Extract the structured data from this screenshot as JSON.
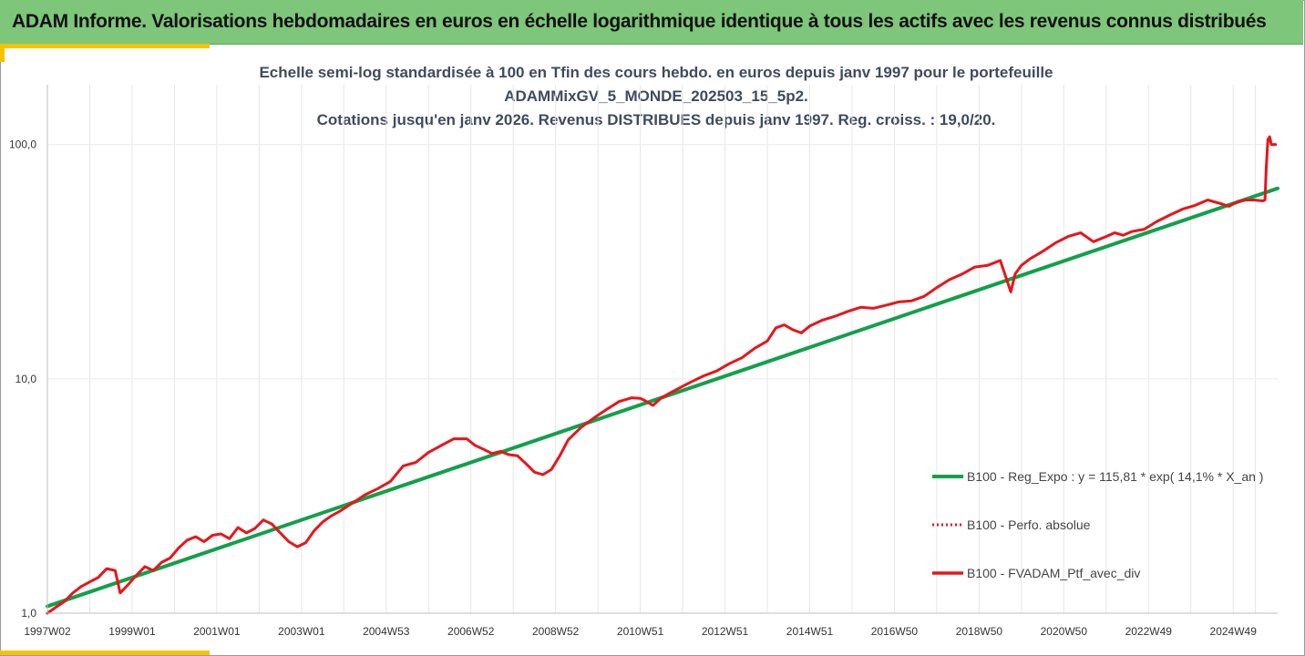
{
  "header": {
    "title": "ADAM Informe. Valorisations hebdomadaires en euros en échelle logarithmique identique à tous les actifs avec les revenus connus distribués"
  },
  "colors": {
    "banner": "#7dc67a",
    "accent": "#f5c400",
    "regression": "#12a04a",
    "portfolio": "#e8151b"
  },
  "chart_data": {
    "type": "line",
    "title_lines": [
      "Echelle semi-log standardisée à 100 en Tfin des cours hebdo.  en euros depuis janv 1997 pour le portefeuille",
      "ADAMMixGV_5_MONDE_202503_15_5p2.",
      "Cotations jusqu'en janv 2026. Revenus DISTRIBUES depuis janv 1997. Reg. croiss. : 19,0/20."
    ],
    "y_scale": "log",
    "ylim": [
      1,
      180
    ],
    "yticks": [
      1,
      10,
      100
    ],
    "ytick_labels": [
      "1,0",
      "10,0",
      "100,0"
    ],
    "xlim": [
      1997.0,
      2026.05
    ],
    "xticks": [
      1997.0,
      1999.0,
      2001.0,
      2003.0,
      2005.0,
      2007.0,
      2009.0,
      2011.0,
      2013.0,
      2015.0,
      2017.0,
      2019.0,
      2021.0,
      2023.0,
      2025.0
    ],
    "xtick_labels": [
      "1997W02",
      "1999W01",
      "2001W01",
      "2003W01",
      "2004W53",
      "2006W52",
      "2008W52",
      "2010W51",
      "2012W51",
      "2014W51",
      "2016W50",
      "2018W50",
      "2020W50",
      "2022W49",
      "2024W49"
    ],
    "grid": "vertical",
    "legend_position": "right",
    "series": [
      {
        "name": "B100 - Reg_Expo : y = 115,81 * exp( 14,1% *  X_an )",
        "style": "solid-thick",
        "x": [
          1997.0,
          2026.05
        ],
        "y": [
          1.07,
          65
        ]
      },
      {
        "name": "B100 - Perfo. absolue",
        "style": "dotted",
        "x": [],
        "y": []
      },
      {
        "name": "B100 - FVADAM_Ptf_avec_div",
        "style": "solid",
        "x": [
          1997.0,
          1997.2,
          1997.4,
          1997.6,
          1997.8,
          1998.0,
          1998.2,
          1998.4,
          1998.6,
          1998.72,
          1998.9,
          1999.1,
          1999.3,
          1999.5,
          1999.7,
          1999.9,
          2000.1,
          2000.3,
          2000.5,
          2000.7,
          2000.9,
          2001.1,
          2001.3,
          2001.5,
          2001.7,
          2001.9,
          2002.1,
          2002.3,
          2002.5,
          2002.7,
          2002.9,
          2003.1,
          2003.3,
          2003.5,
          2003.7,
          2003.9,
          2004.2,
          2004.5,
          2004.8,
          2005.1,
          2005.4,
          2005.7,
          2006.0,
          2006.3,
          2006.6,
          2006.9,
          2007.1,
          2007.3,
          2007.5,
          2007.7,
          2007.9,
          2008.1,
          2008.3,
          2008.5,
          2008.7,
          2008.9,
          2009.1,
          2009.3,
          2009.6,
          2009.9,
          2010.2,
          2010.5,
          2010.8,
          2011.0,
          2011.1,
          2011.3,
          2011.5,
          2011.7,
          2011.9,
          2012.2,
          2012.5,
          2012.8,
          2013.1,
          2013.4,
          2013.7,
          2014.0,
          2014.2,
          2014.4,
          2014.6,
          2014.8,
          2015.0,
          2015.3,
          2015.6,
          2015.9,
          2016.2,
          2016.5,
          2016.8,
          2017.1,
          2017.4,
          2017.7,
          2018.0,
          2018.3,
          2018.6,
          2018.9,
          2019.2,
          2019.5,
          2019.75,
          2019.85,
          2020.0,
          2020.2,
          2020.5,
          2020.8,
          2021.1,
          2021.4,
          2021.7,
          2022.0,
          2022.2,
          2022.4,
          2022.6,
          2022.9,
          2023.2,
          2023.5,
          2023.8,
          2024.1,
          2024.4,
          2024.7,
          2024.9,
          2025.1,
          2025.3,
          2025.5,
          2025.7,
          2025.75,
          2025.78,
          2025.82,
          2025.86,
          2025.9,
          2026.0
        ],
        "y": [
          1.0,
          1.06,
          1.12,
          1.22,
          1.3,
          1.36,
          1.42,
          1.55,
          1.52,
          1.22,
          1.32,
          1.45,
          1.58,
          1.52,
          1.65,
          1.72,
          1.9,
          2.05,
          2.12,
          2.02,
          2.15,
          2.18,
          2.08,
          2.32,
          2.2,
          2.3,
          2.5,
          2.4,
          2.2,
          2.02,
          1.92,
          2.0,
          2.25,
          2.45,
          2.6,
          2.72,
          2.95,
          3.2,
          3.4,
          3.65,
          4.25,
          4.4,
          4.85,
          5.2,
          5.55,
          5.55,
          5.2,
          5.0,
          4.8,
          4.9,
          4.75,
          4.7,
          4.35,
          4.0,
          3.9,
          4.1,
          4.7,
          5.5,
          6.2,
          6.8,
          7.4,
          8.0,
          8.3,
          8.25,
          8.1,
          7.7,
          8.3,
          8.7,
          9.1,
          9.7,
          10.3,
          10.8,
          11.6,
          12.3,
          13.5,
          14.5,
          16.5,
          17.0,
          16.2,
          15.7,
          16.8,
          17.8,
          18.5,
          19.4,
          20.2,
          20.0,
          20.6,
          21.3,
          21.5,
          22.5,
          24.5,
          26.5,
          28.0,
          30.0,
          30.5,
          32.0,
          23.5,
          28.0,
          30.5,
          32.5,
          35.0,
          38.0,
          40.5,
          42.0,
          38.5,
          40.5,
          42.0,
          41.0,
          42.5,
          43.5,
          47.0,
          50.0,
          53.0,
          55.0,
          58.0,
          56.0,
          54.5,
          57.0,
          58.0,
          58.0,
          57.5,
          58.0,
          80.0,
          105.0,
          108.0,
          100.0,
          100.0
        ]
      }
    ]
  }
}
